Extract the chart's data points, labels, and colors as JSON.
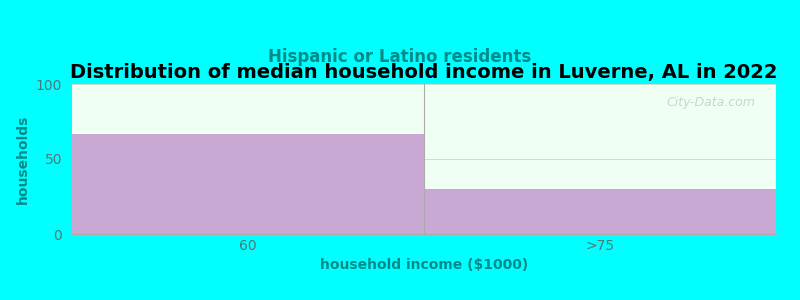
{
  "title": "Distribution of median household income in Luverne, AL in 2022",
  "subtitle": "Hispanic or Latino residents",
  "xlabel": "household income ($1000)",
  "ylabel": "households",
  "categories": [
    "60",
    ">75"
  ],
  "values": [
    67,
    30
  ],
  "bar_color": "#C9A8D4",
  "background_color": "#00FFFF",
  "plot_bg_color": "#F0FFF4",
  "title_fontsize": 14,
  "subtitle_fontsize": 12,
  "subtitle_color": "#008B8B",
  "axis_label_fontsize": 10,
  "tick_fontsize": 10,
  "tick_color": "#4A7A7A",
  "ylim": [
    0,
    100
  ],
  "yticks": [
    0,
    50,
    100
  ],
  "watermark": "City-Data.com",
  "watermark_color": "#BBCCCC"
}
